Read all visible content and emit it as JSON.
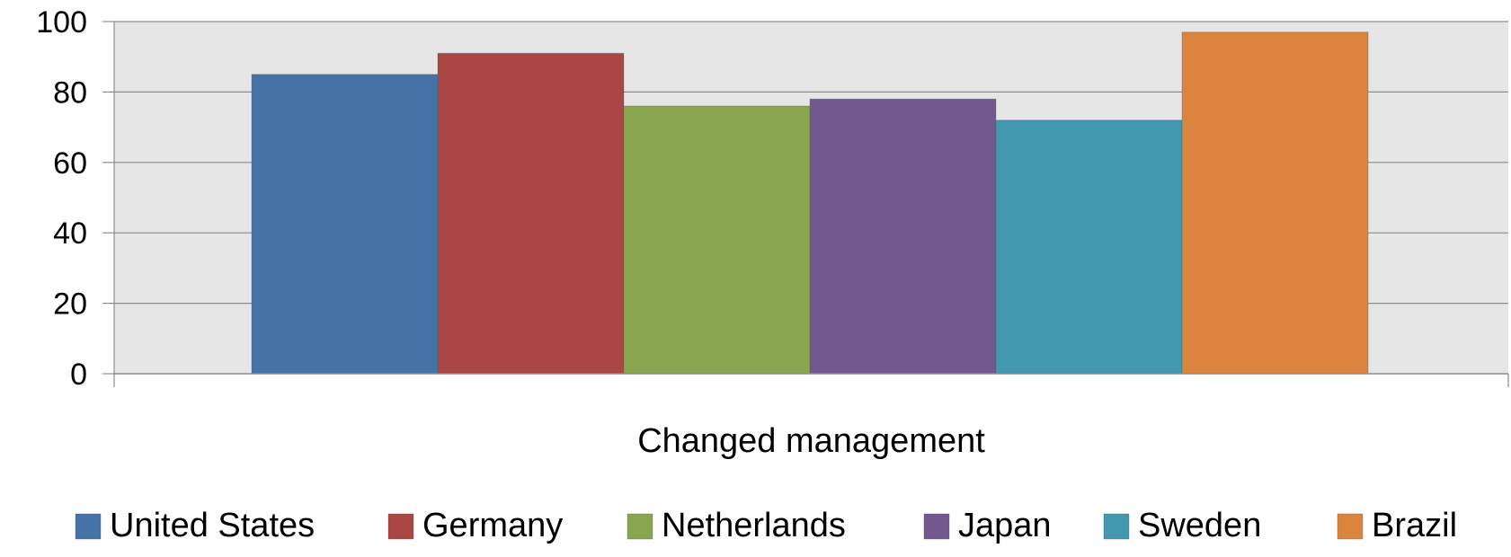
{
  "chart_data": {
    "type": "bar",
    "title": "",
    "xlabel": "",
    "ylabel": "",
    "categories": [
      "Changed management"
    ],
    "series": [
      {
        "name": "United States",
        "values": [
          85
        ],
        "color": "#4572A7"
      },
      {
        "name": "Germany",
        "values": [
          91
        ],
        "color": "#AA4643"
      },
      {
        "name": "Netherlands",
        "values": [
          76
        ],
        "color": "#89A54E"
      },
      {
        "name": "Japan",
        "values": [
          78
        ],
        "color": "#71588F"
      },
      {
        "name": "Sweden",
        "values": [
          72
        ],
        "color": "#4198AF"
      },
      {
        "name": "Brazil",
        "values": [
          97
        ],
        "color": "#DB843D"
      }
    ],
    "ylim": [
      0,
      100
    ],
    "yticks": [
      0,
      20,
      40,
      60,
      80,
      100
    ],
    "grid": true,
    "legend_position": "bottom",
    "plot_background": "#E6E6E6"
  }
}
